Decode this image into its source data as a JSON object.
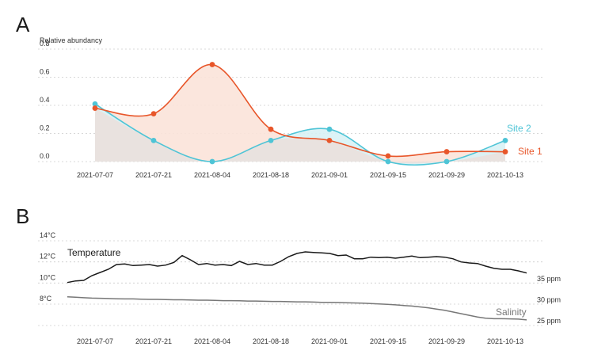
{
  "colors": {
    "site1": "#e8562a",
    "site1_fill": "#fbe3d9",
    "site2": "#4ec4d6",
    "site2_fill": "#d8f2f5",
    "overlap_fill": "#e9e2df",
    "temperature": "#1a1a1a",
    "salinity": "#777777",
    "grid": "#cccccc",
    "text": "#333333"
  },
  "chart_data": [
    {
      "panel": "A",
      "type": "area",
      "ylabel": "Relative abundancy",
      "ylim": [
        0.0,
        0.8
      ],
      "yticks": [
        "0.0",
        "0.2",
        "0.4",
        "0.6",
        "0.8"
      ],
      "categories": [
        "2021-07-07",
        "2021-07-21",
        "2021-08-04",
        "2021-08-18",
        "2021-09-01",
        "2021-09-15",
        "2021-09-29",
        "2021-10-13"
      ],
      "series": [
        {
          "name": "Site 1",
          "values": [
            0.38,
            0.34,
            0.69,
            0.23,
            0.15,
            0.04,
            0.07,
            0.07
          ]
        },
        {
          "name": "Site 2",
          "values": [
            0.41,
            0.15,
            0.0,
            0.15,
            0.23,
            0.0,
            0.0,
            0.15
          ]
        }
      ],
      "grid": "horizontal dashed"
    },
    {
      "panel": "B",
      "type": "line",
      "categories": [
        "2021-07-07",
        "2021-07-21",
        "2021-08-04",
        "2021-08-18",
        "2021-09-01",
        "2021-09-15",
        "2021-09-29",
        "2021-10-13"
      ],
      "left_axis": {
        "ticks": [
          "14°C",
          "12°C",
          "10°C",
          "8°C"
        ],
        "range": [
          8,
          14
        ],
        "unit": "°C"
      },
      "right_axis": {
        "ticks": [
          "35 ppm",
          "30 ppm",
          "25 ppm"
        ],
        "range": [
          25,
          35
        ],
        "unit": "ppm"
      },
      "series": [
        {
          "name": "Temperature",
          "x": [
            0,
            2,
            4,
            6,
            8,
            10,
            12,
            14,
            16,
            18,
            20,
            22,
            24,
            26,
            28,
            30,
            32,
            34,
            36,
            38,
            40,
            42,
            44,
            46,
            48,
            50,
            52,
            54,
            56,
            58,
            60,
            62,
            64,
            66,
            68,
            70,
            72,
            74,
            76,
            78,
            80,
            82,
            84,
            86,
            88,
            90,
            92,
            94,
            96,
            98,
            100,
            102,
            104,
            106,
            108,
            110,
            112
          ],
          "values": [
            10.05,
            10.2,
            10.25,
            10.7,
            11.0,
            11.3,
            11.75,
            11.8,
            11.65,
            11.7,
            11.75,
            11.6,
            11.7,
            11.95,
            12.6,
            12.2,
            11.75,
            11.85,
            11.7,
            11.75,
            11.65,
            12.05,
            11.75,
            11.85,
            11.7,
            11.7,
            12.05,
            12.5,
            12.8,
            12.95,
            12.9,
            12.85,
            12.8,
            12.6,
            12.65,
            12.3,
            12.3,
            12.45,
            12.4,
            12.45,
            12.35,
            12.45,
            12.55,
            12.4,
            12.45,
            12.5,
            12.45,
            12.3,
            12.0,
            11.9,
            11.85,
            11.6,
            11.4,
            11.3,
            11.3,
            11.15,
            10.95
          ]
        },
        {
          "name": "Salinity",
          "x": [
            0,
            2,
            4,
            6,
            8,
            10,
            12,
            14,
            16,
            18,
            20,
            22,
            24,
            26,
            28,
            30,
            32,
            34,
            36,
            38,
            40,
            42,
            44,
            46,
            48,
            50,
            52,
            54,
            56,
            58,
            60,
            62,
            64,
            66,
            68,
            70,
            72,
            74,
            76,
            78,
            80,
            82,
            84,
            86,
            88,
            90,
            92,
            94,
            96,
            98,
            100,
            102,
            104,
            106,
            108,
            110,
            112
          ],
          "values": [
            30.7,
            30.6,
            30.5,
            30.4,
            30.35,
            30.3,
            30.25,
            30.2,
            30.2,
            30.15,
            30.1,
            30.1,
            30.05,
            30.0,
            30.0,
            29.95,
            29.9,
            29.9,
            29.85,
            29.8,
            29.8,
            29.75,
            29.7,
            29.7,
            29.65,
            29.6,
            29.6,
            29.55,
            29.5,
            29.5,
            29.45,
            29.4,
            29.4,
            29.35,
            29.3,
            29.25,
            29.2,
            29.1,
            29.0,
            28.9,
            28.8,
            28.65,
            28.5,
            28.3,
            28.1,
            27.8,
            27.5,
            27.1,
            26.7,
            26.3,
            25.9,
            25.6,
            25.5,
            25.5,
            25.45,
            25.4,
            25.2
          ]
        }
      ],
      "grid": "horizontal dashed"
    }
  ],
  "labels": {
    "panel_a": "A",
    "panel_b": "B",
    "site1": "Site 1",
    "site2": "Site 2",
    "temperature": "Temperature",
    "salinity": "Salinity"
  }
}
